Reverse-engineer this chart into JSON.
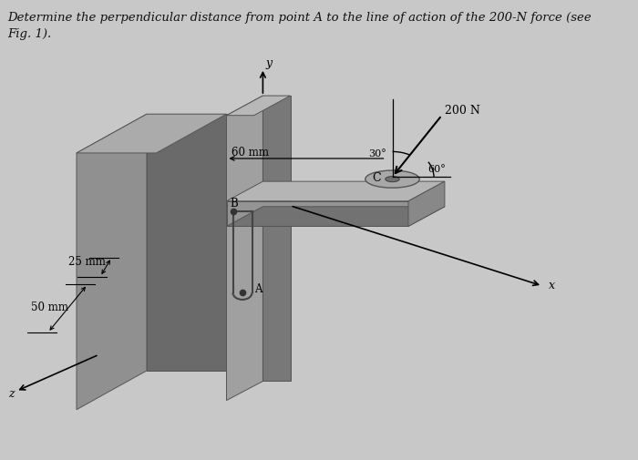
{
  "title_text": "Determine the perpendicular distance from point A to the line of action of the 200-N force (see\nFig. 1).",
  "title_fontsize": 9.5,
  "title_color": "#111111",
  "bg_outer": "#c8c8c8",
  "bg_inner": "#b2b2b2",
  "label_200N": "200 N",
  "label_30deg": "30°",
  "label_60deg": "60°",
  "label_60mm": "60 mm",
  "label_25mm": "25 mm",
  "label_50mm": "50 mm",
  "label_A": "A",
  "label_B": "B",
  "label_C": "C",
  "label_x": "x",
  "label_y": "y",
  "label_z": "z",
  "col_face_front": "#a0a0a0",
  "col_face_right": "#787878",
  "col_face_top": "#b8b8b8",
  "col_slab_front": "#909090",
  "col_slab_right": "#6a6a6a",
  "col_slab_top": "#ababab",
  "col_arm_top": "#b5b5b5",
  "col_arm_front": "#949494",
  "col_arm_bottom": "#727272",
  "col_shadow": "#7a7a7a"
}
